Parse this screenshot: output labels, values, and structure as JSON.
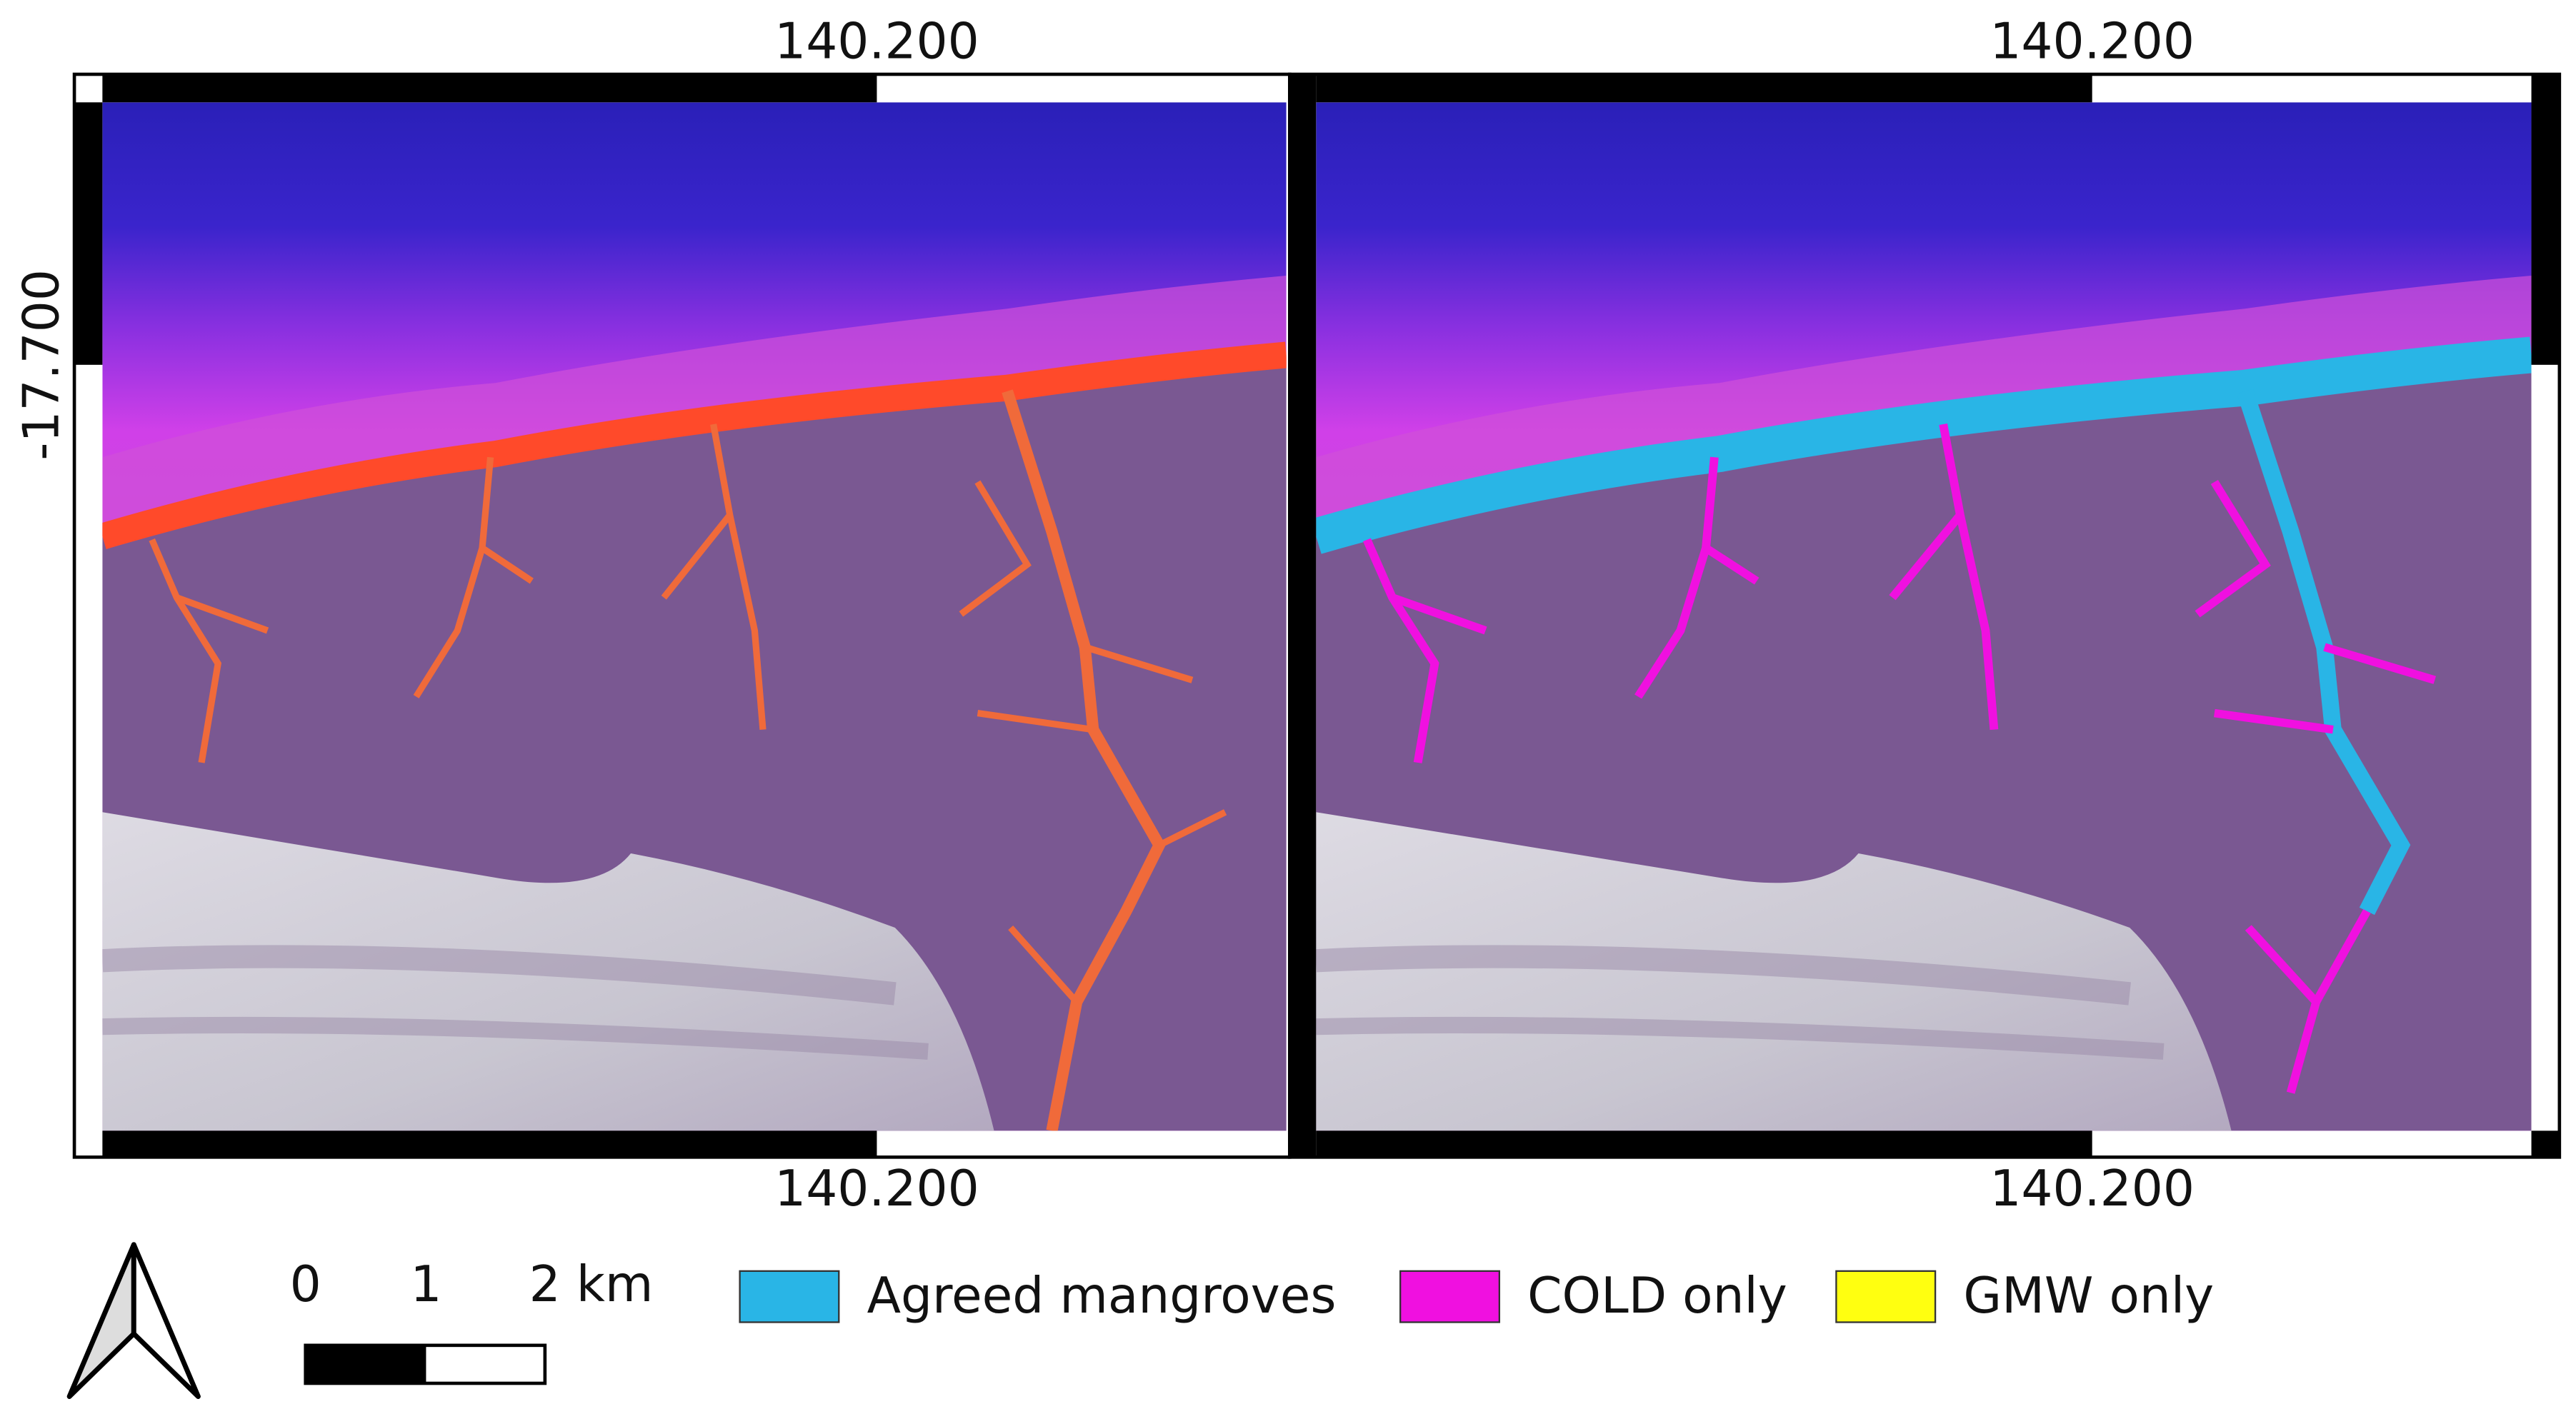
{
  "map": {
    "panels": [
      {
        "top_label": "140.200",
        "bottom_label": "140.200",
        "left_label": "-17.700"
      },
      {
        "top_label": "140.200",
        "bottom_label": "140.200"
      }
    ],
    "scale_bar": {
      "labels": [
        "0",
        "1",
        "2 km"
      ]
    },
    "legend": [
      {
        "label": "Agreed mangroves",
        "color": "#29b5e6"
      },
      {
        "label": "COLD only",
        "color": "#f010e0"
      },
      {
        "label": "GMW only",
        "color": "#ffff10"
      }
    ]
  }
}
